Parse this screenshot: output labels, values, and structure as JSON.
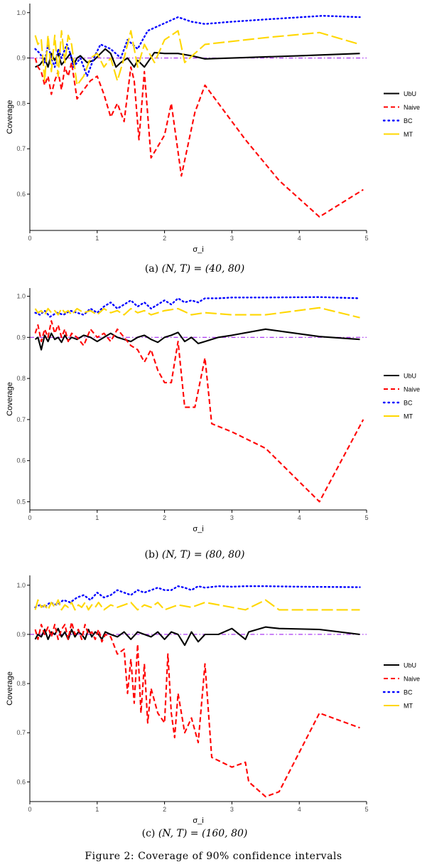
{
  "chart_data": [
    {
      "type": "line",
      "panel": "a",
      "caption_label": "(a)",
      "caption_math": "(N, T) = (40, 80)",
      "xlabel": "σ_i",
      "ylabel": "Coverage",
      "xlim": [
        0,
        5
      ],
      "ylim": [
        0.52,
        1.02
      ],
      "xticks": [
        "0",
        "1",
        "2",
        "3",
        "4",
        "5"
      ],
      "yticks": [
        "0.6",
        "0.7",
        "0.8",
        "0.9",
        "1.0"
      ],
      "reference_line": 0.9,
      "series": [
        {
          "name": "UbU",
          "color": "#000000",
          "style": "solid",
          "x": [
            0.08,
            0.15,
            0.22,
            0.27,
            0.32,
            0.37,
            0.42,
            0.47,
            0.55,
            0.6,
            0.65,
            0.7,
            0.75,
            0.85,
            0.95,
            1.05,
            1.12,
            1.2,
            1.28,
            1.35,
            1.45,
            1.55,
            1.6,
            1.7,
            1.85,
            2.0,
            2.2,
            2.4,
            2.6,
            3.0,
            4.0,
            4.9
          ],
          "y": [
            0.88,
            0.885,
            0.9,
            0.88,
            0.91,
            0.895,
            0.91,
            0.885,
            0.9,
            0.91,
            0.885,
            0.9,
            0.905,
            0.89,
            0.895,
            0.91,
            0.92,
            0.91,
            0.88,
            0.89,
            0.9,
            0.88,
            0.895,
            0.88,
            0.912,
            0.91,
            0.91,
            0.905,
            0.898,
            0.9,
            0.905,
            0.91
          ]
        },
        {
          "name": "Naive",
          "color": "#ff0000",
          "style": "dashed",
          "x": [
            0.08,
            0.12,
            0.17,
            0.22,
            0.27,
            0.32,
            0.37,
            0.42,
            0.47,
            0.52,
            0.57,
            0.62,
            0.7,
            0.8,
            0.9,
            1.0,
            1.1,
            1.2,
            1.3,
            1.4,
            1.5,
            1.55,
            1.62,
            1.7,
            1.8,
            2.0,
            2.1,
            2.25,
            2.45,
            2.6,
            3.2,
            3.7,
            4.3,
            4.95
          ],
          "y": [
            0.9,
            0.88,
            0.87,
            0.84,
            0.86,
            0.82,
            0.85,
            0.87,
            0.83,
            0.88,
            0.86,
            0.89,
            0.81,
            0.83,
            0.85,
            0.86,
            0.82,
            0.77,
            0.8,
            0.76,
            0.88,
            0.85,
            0.72,
            0.87,
            0.68,
            0.73,
            0.8,
            0.64,
            0.78,
            0.84,
            0.72,
            0.63,
            0.55,
            0.61
          ]
        },
        {
          "name": "BC",
          "color": "#0000ff",
          "style": "dotted",
          "x": [
            0.08,
            0.15,
            0.22,
            0.27,
            0.32,
            0.37,
            0.42,
            0.47,
            0.55,
            0.6,
            0.65,
            0.75,
            0.85,
            0.95,
            1.05,
            1.2,
            1.35,
            1.45,
            1.6,
            1.75,
            1.9,
            2.05,
            2.2,
            2.4,
            2.6,
            3.0,
            3.5,
            4.35,
            4.9
          ],
          "y": [
            0.92,
            0.91,
            0.89,
            0.93,
            0.9,
            0.88,
            0.92,
            0.9,
            0.93,
            0.91,
            0.88,
            0.9,
            0.86,
            0.9,
            0.93,
            0.92,
            0.9,
            0.94,
            0.92,
            0.96,
            0.97,
            0.98,
            0.99,
            0.98,
            0.975,
            0.98,
            0.985,
            0.993,
            0.99
          ]
        },
        {
          "name": "MT",
          "color": "#ffd700",
          "style": "longdash",
          "x": [
            0.08,
            0.12,
            0.17,
            0.22,
            0.27,
            0.32,
            0.37,
            0.42,
            0.47,
            0.52,
            0.57,
            0.62,
            0.7,
            0.8,
            0.9,
            1.0,
            1.1,
            1.2,
            1.3,
            1.4,
            1.5,
            1.6,
            1.7,
            1.85,
            2.0,
            2.2,
            2.3,
            2.6,
            3.5,
            4.3,
            4.9
          ],
          "y": [
            0.95,
            0.93,
            0.94,
            0.85,
            0.95,
            0.87,
            0.95,
            0.86,
            0.96,
            0.89,
            0.95,
            0.93,
            0.84,
            0.86,
            0.9,
            0.91,
            0.88,
            0.9,
            0.85,
            0.9,
            0.96,
            0.88,
            0.93,
            0.89,
            0.94,
            0.96,
            0.89,
            0.93,
            0.945,
            0.956,
            0.93
          ]
        }
      ]
    },
    {
      "type": "line",
      "panel": "b",
      "caption_label": "(b)",
      "caption_math": "(N, T) = (80, 80)",
      "xlabel": "σ_i",
      "ylabel": "Coverage",
      "xlim": [
        0,
        5
      ],
      "ylim": [
        0.48,
        1.02
      ],
      "xticks": [
        "0",
        "1",
        "2",
        "3",
        "4",
        "5"
      ],
      "yticks": [
        "0.5",
        "0.6",
        "0.7",
        "0.8",
        "0.9",
        "1.0"
      ],
      "reference_line": 0.9,
      "series": [
        {
          "name": "UbU",
          "color": "#000000",
          "style": "solid",
          "x": [
            0.08,
            0.12,
            0.17,
            0.22,
            0.27,
            0.32,
            0.37,
            0.42,
            0.47,
            0.52,
            0.57,
            0.62,
            0.7,
            0.8,
            0.9,
            1.0,
            1.1,
            1.2,
            1.3,
            1.4,
            1.5,
            1.6,
            1.7,
            1.8,
            1.9,
            2.0,
            2.1,
            2.2,
            2.3,
            2.4,
            2.5,
            2.6,
            2.8,
            3.0,
            3.5,
            4.3,
            4.9
          ],
          "y": [
            0.895,
            0.9,
            0.87,
            0.905,
            0.89,
            0.91,
            0.895,
            0.9,
            0.888,
            0.905,
            0.892,
            0.9,
            0.895,
            0.905,
            0.9,
            0.89,
            0.9,
            0.91,
            0.9,
            0.895,
            0.89,
            0.9,
            0.905,
            0.895,
            0.888,
            0.9,
            0.905,
            0.912,
            0.89,
            0.9,
            0.885,
            0.89,
            0.9,
            0.905,
            0.92,
            0.902,
            0.895
          ]
        },
        {
          "name": "Naive",
          "color": "#ff0000",
          "style": "dashed",
          "x": [
            0.08,
            0.12,
            0.17,
            0.22,
            0.27,
            0.32,
            0.37,
            0.42,
            0.47,
            0.52,
            0.57,
            0.62,
            0.7,
            0.8,
            0.9,
            1.0,
            1.1,
            1.2,
            1.3,
            1.4,
            1.5,
            1.6,
            1.7,
            1.8,
            1.9,
            2.0,
            2.1,
            2.2,
            2.3,
            2.45,
            2.6,
            2.7,
            3.0,
            3.5,
            4.3,
            4.95
          ],
          "y": [
            0.91,
            0.93,
            0.89,
            0.92,
            0.9,
            0.94,
            0.91,
            0.93,
            0.9,
            0.92,
            0.89,
            0.91,
            0.9,
            0.88,
            0.92,
            0.9,
            0.91,
            0.89,
            0.92,
            0.9,
            0.88,
            0.87,
            0.84,
            0.87,
            0.82,
            0.79,
            0.79,
            0.89,
            0.73,
            0.73,
            0.85,
            0.69,
            0.67,
            0.63,
            0.5,
            0.7
          ]
        },
        {
          "name": "BC",
          "color": "#0000ff",
          "style": "dotted",
          "x": [
            0.08,
            0.15,
            0.22,
            0.3,
            0.4,
            0.5,
            0.6,
            0.7,
            0.8,
            0.9,
            1.0,
            1.1,
            1.2,
            1.3,
            1.4,
            1.5,
            1.6,
            1.7,
            1.8,
            1.9,
            2.0,
            2.1,
            2.2,
            2.3,
            2.4,
            2.5,
            2.6,
            2.8,
            3.0,
            3.5,
            4.3,
            4.9
          ],
          "y": [
            0.96,
            0.955,
            0.965,
            0.95,
            0.96,
            0.955,
            0.965,
            0.96,
            0.955,
            0.97,
            0.96,
            0.975,
            0.985,
            0.97,
            0.98,
            0.99,
            0.975,
            0.985,
            0.97,
            0.98,
            0.99,
            0.98,
            0.995,
            0.985,
            0.99,
            0.985,
            0.995,
            0.995,
            0.997,
            0.997,
            0.998,
            0.995
          ]
        },
        {
          "name": "MT",
          "color": "#ffd700",
          "style": "longdash",
          "x": [
            0.08,
            0.12,
            0.17,
            0.22,
            0.27,
            0.32,
            0.37,
            0.42,
            0.47,
            0.52,
            0.57,
            0.62,
            0.7,
            0.8,
            0.9,
            1.0,
            1.1,
            1.2,
            1.3,
            1.4,
            1.5,
            1.6,
            1.7,
            1.8,
            1.9,
            2.0,
            2.2,
            2.4,
            2.6,
            3.0,
            3.5,
            4.3,
            4.9
          ],
          "y": [
            0.97,
            0.96,
            0.965,
            0.955,
            0.97,
            0.96,
            0.965,
            0.955,
            0.97,
            0.96,
            0.965,
            0.955,
            0.97,
            0.96,
            0.965,
            0.955,
            0.97,
            0.96,
            0.965,
            0.955,
            0.97,
            0.96,
            0.965,
            0.955,
            0.96,
            0.965,
            0.97,
            0.955,
            0.96,
            0.955,
            0.955,
            0.972,
            0.948
          ]
        }
      ]
    },
    {
      "type": "line",
      "panel": "c",
      "caption_label": "(c)",
      "caption_math": "(N, T) = (160, 80)",
      "xlabel": "σ_i",
      "ylabel": "Coverage",
      "xlim": [
        0,
        5
      ],
      "ylim": [
        0.56,
        1.02
      ],
      "xticks": [
        "0",
        "1",
        "2",
        "3",
        "4",
        "5"
      ],
      "yticks": [
        "0.6",
        "0.7",
        "0.8",
        "0.9",
        "1.0"
      ],
      "reference_line": 0.9,
      "series": [
        {
          "name": "UbU",
          "color": "#000000",
          "style": "solid",
          "x": [
            0.08,
            0.12,
            0.17,
            0.22,
            0.27,
            0.32,
            0.37,
            0.42,
            0.47,
            0.52,
            0.57,
            0.62,
            0.67,
            0.72,
            0.77,
            0.82,
            0.87,
            0.92,
            0.97,
            1.02,
            1.07,
            1.12,
            1.2,
            1.3,
            1.4,
            1.5,
            1.6,
            1.7,
            1.8,
            1.9,
            2.0,
            2.1,
            2.2,
            2.3,
            2.4,
            2.5,
            2.6,
            2.8,
            3.0,
            3.2,
            3.25,
            3.5,
            3.7,
            4.3,
            4.9
          ],
          "y": [
            0.89,
            0.9,
            0.895,
            0.91,
            0.89,
            0.905,
            0.9,
            0.912,
            0.895,
            0.905,
            0.89,
            0.91,
            0.895,
            0.905,
            0.9,
            0.89,
            0.91,
            0.895,
            0.905,
            0.9,
            0.89,
            0.905,
            0.9,
            0.895,
            0.905,
            0.89,
            0.905,
            0.9,
            0.895,
            0.905,
            0.89,
            0.905,
            0.9,
            0.878,
            0.905,
            0.885,
            0.9,
            0.9,
            0.912,
            0.89,
            0.905,
            0.915,
            0.912,
            0.91,
            0.9
          ]
        },
        {
          "name": "Naive",
          "color": "#ff0000",
          "style": "dashed",
          "x": [
            0.08,
            0.12,
            0.17,
            0.22,
            0.27,
            0.32,
            0.37,
            0.42,
            0.47,
            0.52,
            0.57,
            0.62,
            0.67,
            0.72,
            0.77,
            0.82,
            0.87,
            0.92,
            0.97,
            1.02,
            1.07,
            1.12,
            1.2,
            1.3,
            1.4,
            1.45,
            1.5,
            1.55,
            1.6,
            1.65,
            1.7,
            1.75,
            1.8,
            1.9,
            2.0,
            2.05,
            2.1,
            2.15,
            2.2,
            2.3,
            2.4,
            2.5,
            2.6,
            2.7,
            3.0,
            3.2,
            3.25,
            3.5,
            3.7,
            4.3,
            4.9
          ],
          "y": [
            0.91,
            0.89,
            0.92,
            0.9,
            0.915,
            0.895,
            0.92,
            0.89,
            0.91,
            0.92,
            0.89,
            0.925,
            0.9,
            0.91,
            0.89,
            0.92,
            0.9,
            0.905,
            0.89,
            0.91,
            0.885,
            0.9,
            0.895,
            0.86,
            0.87,
            0.78,
            0.85,
            0.76,
            0.88,
            0.74,
            0.84,
            0.72,
            0.79,
            0.74,
            0.72,
            0.86,
            0.74,
            0.69,
            0.78,
            0.7,
            0.73,
            0.68,
            0.84,
            0.65,
            0.63,
            0.64,
            0.6,
            0.57,
            0.58,
            0.74,
            0.71
          ]
        },
        {
          "name": "BC",
          "color": "#0000ff",
          "style": "dotted",
          "x": [
            0.08,
            0.15,
            0.22,
            0.3,
            0.4,
            0.5,
            0.6,
            0.7,
            0.8,
            0.9,
            1.0,
            1.1,
            1.2,
            1.3,
            1.4,
            1.5,
            1.6,
            1.7,
            1.8,
            1.9,
            2.0,
            2.1,
            2.2,
            2.3,
            2.4,
            2.5,
            2.6,
            2.8,
            3.0,
            3.2,
            3.5,
            4.0,
            4.9
          ],
          "y": [
            0.955,
            0.96,
            0.955,
            0.965,
            0.96,
            0.97,
            0.965,
            0.975,
            0.98,
            0.97,
            0.985,
            0.975,
            0.98,
            0.99,
            0.985,
            0.98,
            0.99,
            0.985,
            0.99,
            0.995,
            0.99,
            0.99,
            0.998,
            0.995,
            0.99,
            0.998,
            0.995,
            0.998,
            0.997,
            0.998,
            0.998,
            0.997,
            0.996
          ]
        },
        {
          "name": "MT",
          "color": "#ffd700",
          "style": "longdash",
          "x": [
            0.08,
            0.12,
            0.17,
            0.22,
            0.27,
            0.32,
            0.37,
            0.42,
            0.47,
            0.52,
            0.57,
            0.62,
            0.67,
            0.72,
            0.77,
            0.82,
            0.87,
            0.92,
            0.97,
            1.02,
            1.1,
            1.2,
            1.3,
            1.4,
            1.5,
            1.6,
            1.7,
            1.8,
            1.9,
            2.0,
            2.2,
            2.4,
            2.6,
            3.0,
            3.2,
            3.5,
            3.7,
            4.3,
            4.9
          ],
          "y": [
            0.95,
            0.97,
            0.955,
            0.96,
            0.95,
            0.965,
            0.955,
            0.97,
            0.95,
            0.96,
            0.955,
            0.965,
            0.95,
            0.96,
            0.955,
            0.965,
            0.95,
            0.96,
            0.955,
            0.965,
            0.95,
            0.96,
            0.955,
            0.96,
            0.965,
            0.95,
            0.96,
            0.955,
            0.965,
            0.95,
            0.96,
            0.955,
            0.965,
            0.955,
            0.95,
            0.97,
            0.95,
            0.95,
            0.95
          ]
        }
      ]
    }
  ],
  "figure_caption": "Figure 2: Coverage of 90% confidence intervals"
}
